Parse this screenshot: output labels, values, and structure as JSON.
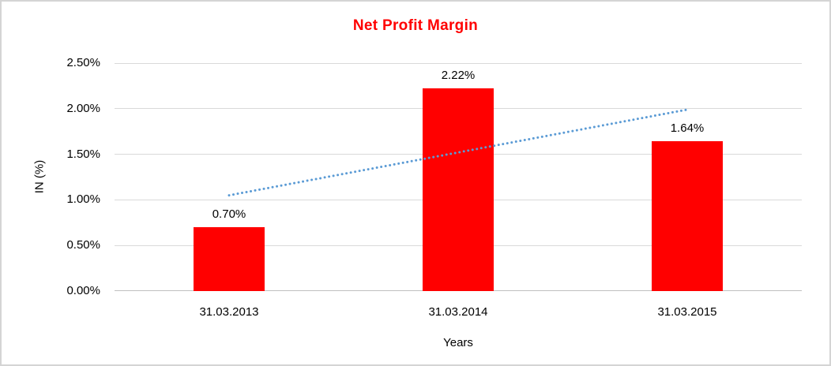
{
  "chart_data": {
    "type": "bar",
    "title": "Net Profit Margin",
    "categories": [
      "31.03.2013",
      "31.03.2014",
      "31.03.2015"
    ],
    "values": [
      0.7,
      2.22,
      1.64
    ],
    "data_labels": [
      "0.70%",
      "2.22%",
      "1.64%"
    ],
    "xlabel": "Years",
    "ylabel": "IN (%)",
    "ylim": [
      0,
      2.5
    ],
    "ytick_step": 0.5,
    "ytick_labels": [
      "0.00%",
      "0.50%",
      "1.00%",
      "1.50%",
      "2.00%",
      "2.50%"
    ],
    "grid": true,
    "legend": false,
    "trendline": {
      "type": "linear",
      "style": "dotted",
      "start_value": 1.05,
      "end_value": 1.99
    },
    "colors": {
      "bar": "#FF0000",
      "title": "#FF0000",
      "trendline": "#5B9BD5",
      "gridline": "#D9D9D9",
      "axis_line": "#BFBFBF",
      "text": "#000000",
      "frame_border": "#D4D4D4"
    }
  }
}
